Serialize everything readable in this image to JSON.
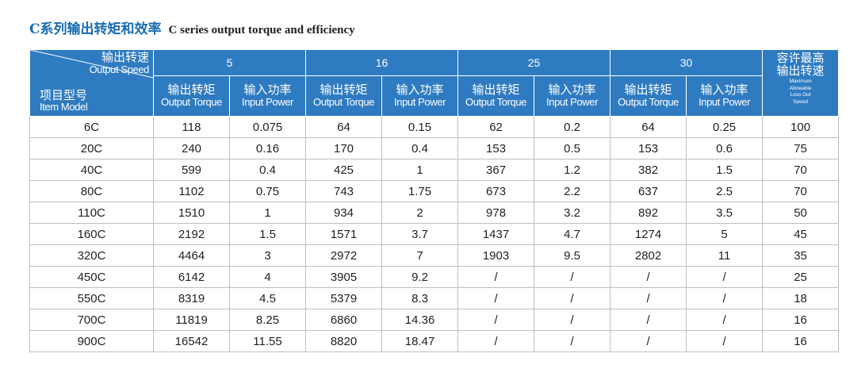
{
  "title": {
    "cn": "C系列输出转矩和效率",
    "en": "C series output torque and efficiency"
  },
  "header": {
    "corner_top_cn": "输出转速",
    "corner_top_en": "Output Speed",
    "corner_bottom_cn": "项目型号",
    "corner_bottom_en": "Item Model",
    "speeds": [
      "5",
      "16",
      "25",
      "30"
    ],
    "torque_cn": "输出转矩",
    "torque_en": "Output Torque",
    "power_cn": "输入功率",
    "power_en": "Input Power",
    "loss_cn_1": "容许最高",
    "loss_cn_2": "输出转速",
    "loss_en": [
      "Maximum",
      "Allowable",
      "Loss Out",
      "Speed"
    ]
  },
  "rows": [
    [
      "6C",
      "118",
      "0.075",
      "64",
      "0.15",
      "62",
      "0.2",
      "64",
      "0.25",
      "100"
    ],
    [
      "20C",
      "240",
      "0.16",
      "170",
      "0.4",
      "153",
      "0.5",
      "153",
      "0.6",
      "75"
    ],
    [
      "40C",
      "599",
      "0.4",
      "425",
      "1",
      "367",
      "1.2",
      "382",
      "1.5",
      "70"
    ],
    [
      "80C",
      "1102",
      "0.75",
      "743",
      "1.75",
      "673",
      "2.2",
      "637",
      "2.5",
      "70"
    ],
    [
      "110C",
      "1510",
      "1",
      "934",
      "2",
      "978",
      "3.2",
      "892",
      "3.5",
      "50"
    ],
    [
      "160C",
      "2192",
      "1.5",
      "1571",
      "3.7",
      "1437",
      "4.7",
      "1274",
      "5",
      "45"
    ],
    [
      "320C",
      "4464",
      "3",
      "2972",
      "7",
      "1903",
      "9.5",
      "2802",
      "11",
      "35"
    ],
    [
      "450C",
      "6142",
      "4",
      "3905",
      "9.2",
      "/",
      "/",
      "/",
      "/",
      "25"
    ],
    [
      "550C",
      "8319",
      "4.5",
      "5379",
      "8.3",
      "/",
      "/",
      "/",
      "/",
      "18"
    ],
    [
      "700C",
      "11819",
      "8.25",
      "6860",
      "14.36",
      "/",
      "/",
      "/",
      "/",
      "16"
    ],
    [
      "900C",
      "16542",
      "11.55",
      "8820",
      "18.47",
      "/",
      "/",
      "/",
      "/",
      "16"
    ]
  ],
  "colors": {
    "header_bg": "#2f7bc1",
    "title_cn": "#1a6cb0",
    "grid": "#b9c0c6"
  }
}
